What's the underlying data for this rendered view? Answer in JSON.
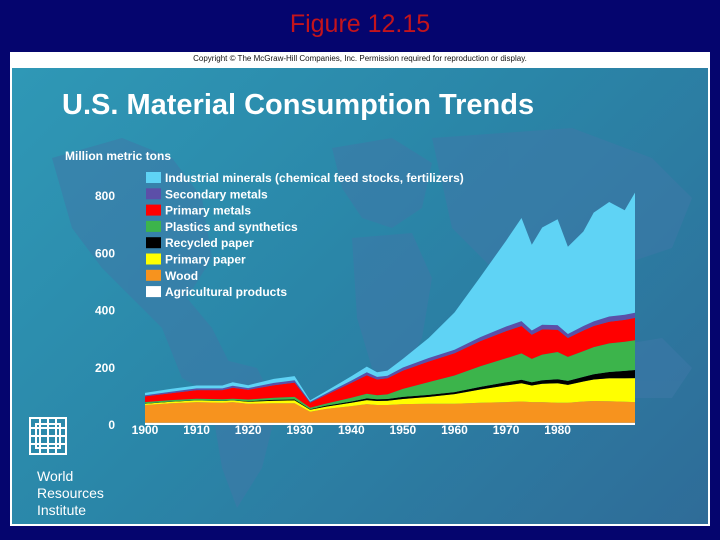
{
  "slide": {
    "title": "Figure 12.15"
  },
  "copyright": "Copyright © The McGraw-Hill Companies, Inc. Permission required for reproduction or display.",
  "organization": {
    "lines": [
      "World",
      "Resources",
      "Institute"
    ]
  },
  "colors": {
    "background": "#05056e",
    "title": "#c4141c",
    "chart_bg": "#2f90b0",
    "text": "#ffffff"
  },
  "chart_data": {
    "type": "area",
    "stacked": true,
    "title": "U.S. Material Consumption Trends",
    "ylabel": "Million metric tons",
    "xlabel": "",
    "ylim": [
      0,
      800
    ],
    "xlim": [
      1900,
      1995
    ],
    "yticks": [
      0,
      200,
      400,
      600,
      800
    ],
    "xticks": [
      1900,
      1910,
      1920,
      1930,
      1940,
      1950,
      1960,
      1970,
      1980
    ],
    "legend_position": "top-left",
    "x": [
      1900,
      1905,
      1910,
      1915,
      1917,
      1920,
      1925,
      1929,
      1932,
      1935,
      1940,
      1943,
      1945,
      1947,
      1950,
      1955,
      1960,
      1965,
      1970,
      1973,
      1975,
      1977,
      1980,
      1982,
      1985,
      1987,
      1990,
      1993,
      1995
    ],
    "series": [
      {
        "name": "Agricultural products",
        "color": "#ffffff",
        "values": [
          8,
          8,
          8,
          8,
          8,
          8,
          8,
          8,
          8,
          8,
          8,
          8,
          8,
          8,
          8,
          8,
          8,
          8,
          8,
          8,
          8,
          8,
          8,
          8,
          8,
          8,
          8,
          8,
          8
        ]
      },
      {
        "name": "Wood",
        "color": "#f7931e",
        "values": [
          62,
          68,
          72,
          70,
          72,
          66,
          68,
          68,
          38,
          48,
          58,
          65,
          62,
          62,
          65,
          66,
          66,
          70,
          72,
          74,
          72,
          72,
          70,
          70,
          74,
          76,
          75,
          73,
          72
        ]
      },
      {
        "name": "Primary paper",
        "color": "#ffff00",
        "values": [
          4,
          5,
          6,
          6,
          6,
          7,
          9,
          10,
          7,
          8,
          12,
          14,
          14,
          15,
          18,
          24,
          34,
          46,
          58,
          64,
          58,
          64,
          68,
          62,
          70,
          75,
          80,
          82,
          84
        ]
      },
      {
        "name": "Recycled paper",
        "color": "#000000",
        "values": [
          1,
          1,
          1,
          1,
          1,
          2,
          3,
          3,
          2,
          3,
          4,
          6,
          6,
          6,
          7,
          7,
          7,
          9,
          11,
          12,
          11,
          12,
          14,
          14,
          16,
          18,
          22,
          26,
          28
        ]
      },
      {
        "name": "Plastics and synthetics",
        "color": "#3cb44b",
        "values": [
          5,
          5,
          5,
          5,
          5,
          6,
          7,
          9,
          5,
          7,
          13,
          16,
          14,
          16,
          28,
          45,
          58,
          72,
          84,
          92,
          82,
          90,
          95,
          84,
          90,
          95,
          100,
          102,
          104
        ]
      },
      {
        "name": "Primary metals",
        "color": "#ff0000",
        "values": [
          20,
          24,
          30,
          32,
          38,
          34,
          44,
          50,
          18,
          30,
          52,
          65,
          55,
          56,
          64,
          72,
          78,
          88,
          95,
          96,
          84,
          88,
          78,
          66,
          72,
          74,
          76,
          76,
          78
        ]
      },
      {
        "name": "Secondary metals",
        "color": "#5c4fa8",
        "values": [
          4,
          5,
          6,
          6,
          7,
          6,
          8,
          8,
          3,
          5,
          8,
          10,
          9,
          9,
          11,
          12,
          12,
          14,
          16,
          17,
          15,
          16,
          16,
          14,
          16,
          16,
          18,
          18,
          18
        ]
      },
      {
        "name": "Industrial minerals (chemical feed stocks, fertilizers)",
        "color": "#5fd3f5",
        "values": [
          8,
          10,
          10,
          10,
          12,
          10,
          14,
          15,
          5,
          8,
          15,
          20,
          16,
          18,
          30,
          70,
          130,
          210,
          300,
          360,
          300,
          340,
          370,
          305,
          330,
          380,
          400,
          365,
          420
        ]
      }
    ],
    "legend_order": [
      "Industrial minerals (chemical feed stocks, fertilizers)",
      "Secondary metals",
      "Primary metals",
      "Plastics and synthetics",
      "Recycled paper",
      "Primary paper",
      "Wood",
      "Agricultural products"
    ]
  }
}
